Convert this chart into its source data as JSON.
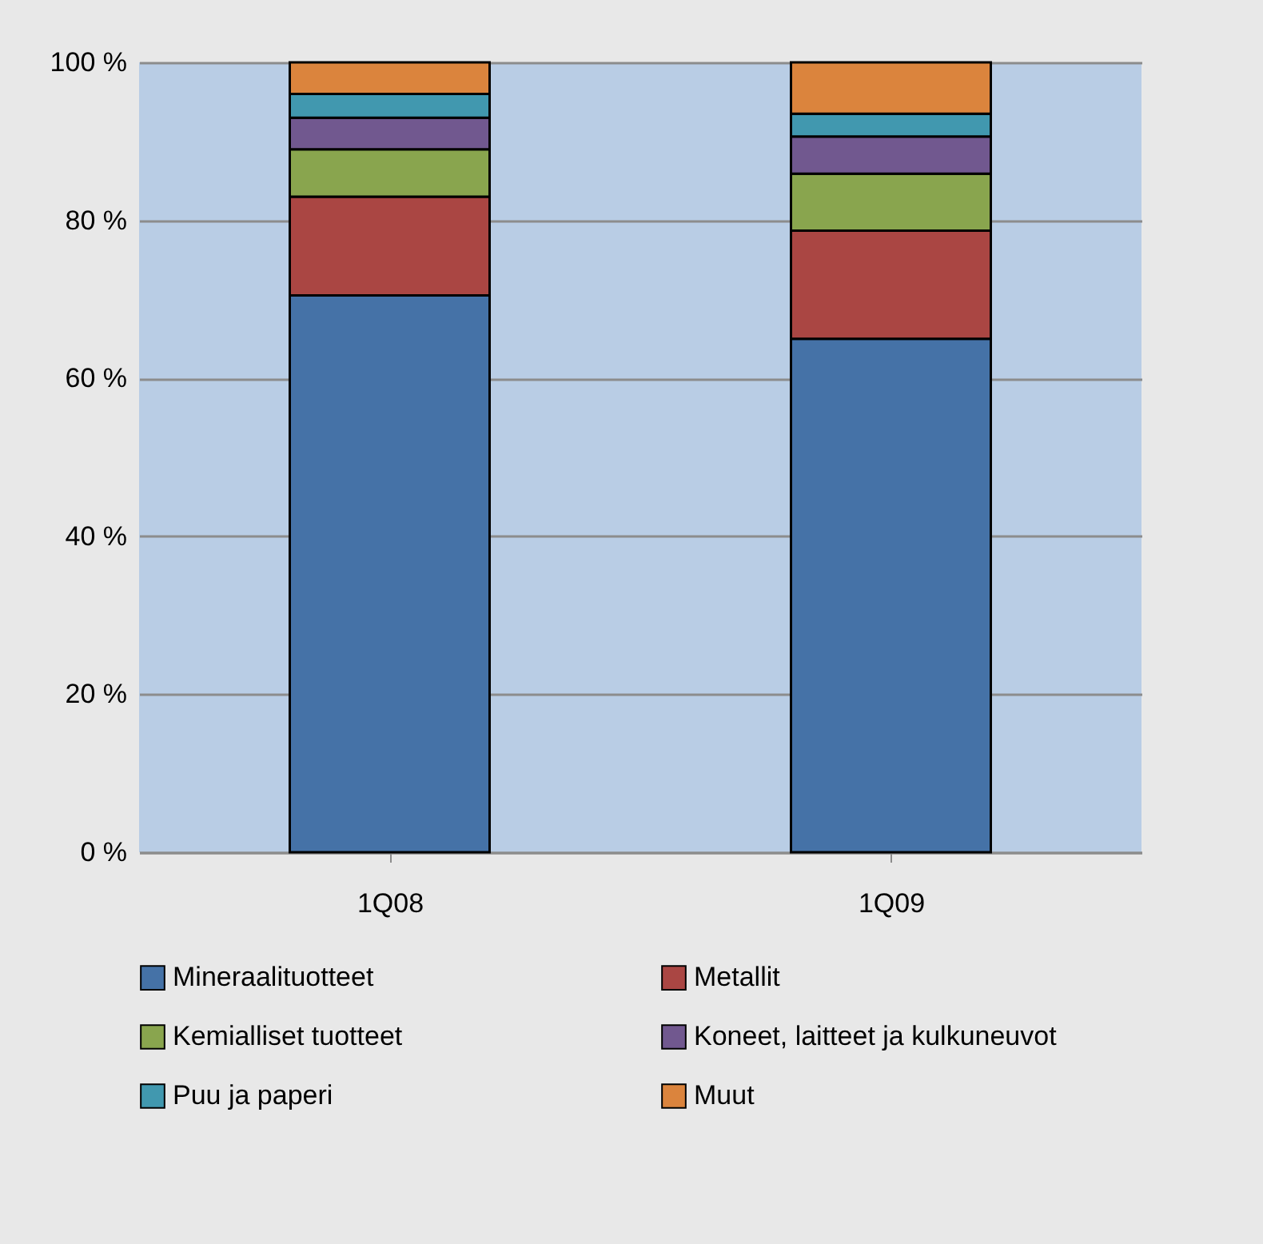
{
  "chart_data": {
    "type": "bar",
    "stacked": true,
    "categories": [
      "1Q08",
      "1Q09"
    ],
    "series": [
      {
        "name": "Mineraalituotteet",
        "color": "#4572a7",
        "values": [
          70.5,
          65
        ]
      },
      {
        "name": "Metallit",
        "color": "#aa4643",
        "values": [
          12.5,
          13.7
        ]
      },
      {
        "name": "Kemialliset tuotteet",
        "color": "#89a54e",
        "values": [
          6,
          7.2
        ]
      },
      {
        "name": "Koneet, laitteet ja kulkuneuvot",
        "color": "#71588f",
        "values": [
          4,
          4.7
        ]
      },
      {
        "name": "Puu ja paperi",
        "color": "#4198af",
        "values": [
          3,
          2.9
        ]
      },
      {
        "name": "Muut",
        "color": "#db843d",
        "values": [
          4,
          6.5
        ]
      }
    ],
    "ylim": [
      0,
      100
    ],
    "yticks": [
      {
        "value": 0,
        "label": "0 %"
      },
      {
        "value": 20,
        "label": "20 %"
      },
      {
        "value": 40,
        "label": "40 %"
      },
      {
        "value": 60,
        "label": "60 %"
      },
      {
        "value": 80,
        "label": "80 %"
      },
      {
        "value": 100,
        "label": "100 %"
      }
    ],
    "grid": "y",
    "legend": "bottom"
  }
}
